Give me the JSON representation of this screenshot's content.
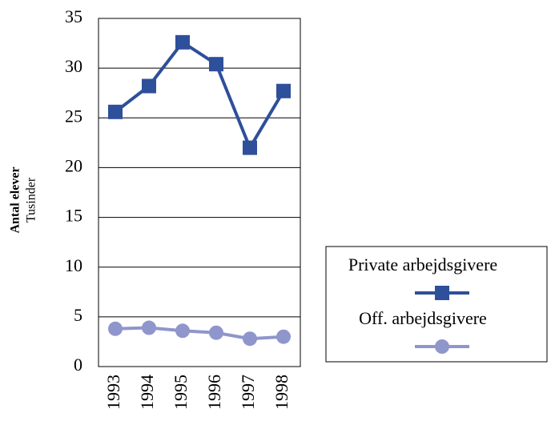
{
  "chart_data": {
    "type": "line",
    "y_label": "Antal elever",
    "y_unit": "Tusinder",
    "categories": [
      "1993",
      "1994",
      "1995",
      "1996",
      "1997",
      "1998"
    ],
    "series": [
      {
        "name": "Private arbejdsgivere",
        "color": "#2e4f9a",
        "marker": "square",
        "values": [
          25.6,
          28.2,
          32.6,
          30.4,
          22.0,
          27.7
        ]
      },
      {
        "name": "Off. arbejdsgivere",
        "color": "#8f96cc",
        "marker": "circle",
        "values": [
          3.8,
          3.9,
          3.6,
          3.4,
          2.8,
          3.0
        ]
      }
    ],
    "ylim": [
      0,
      35
    ],
    "yticks": [
      0,
      5,
      10,
      15,
      20,
      25,
      30,
      35
    ],
    "grid": true,
    "legend": "right"
  }
}
